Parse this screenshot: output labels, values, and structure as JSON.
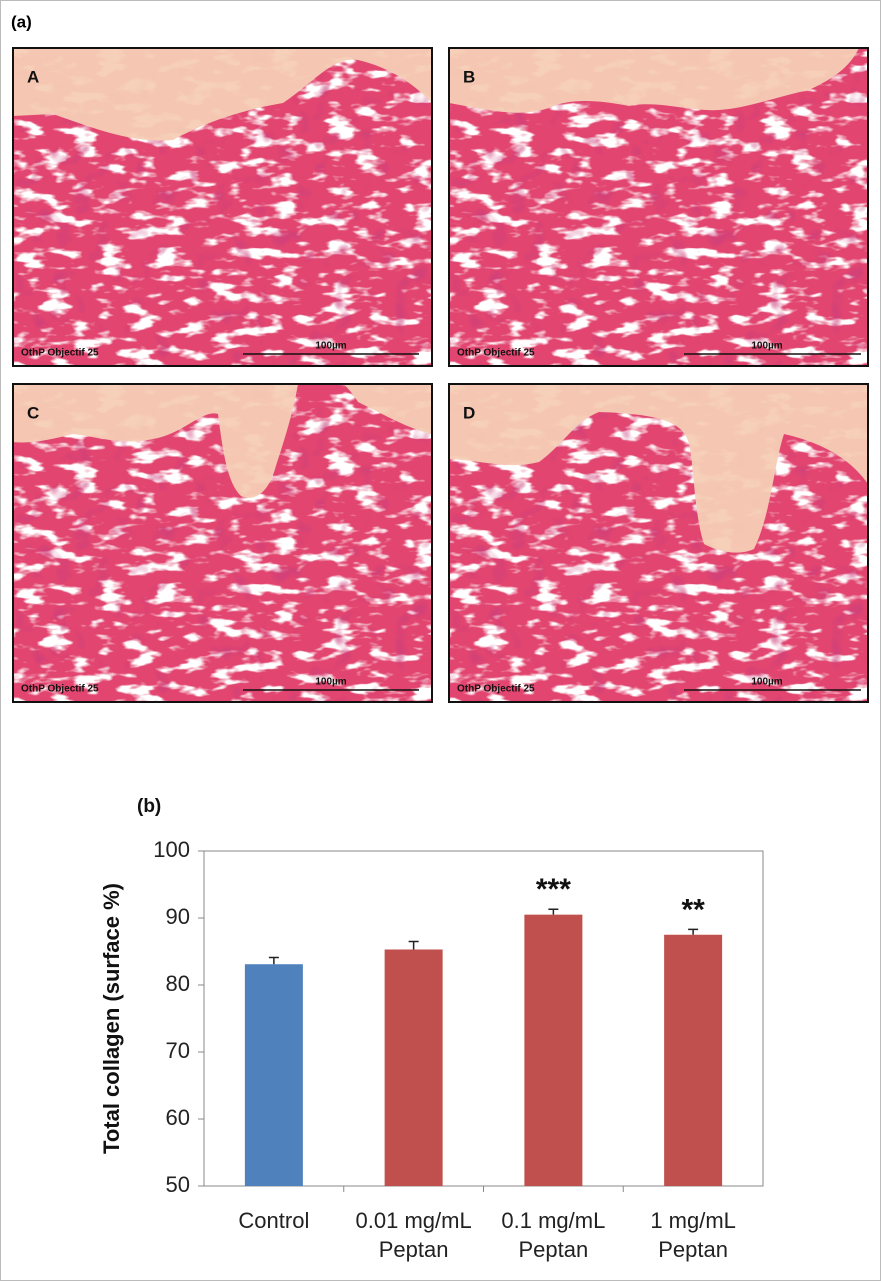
{
  "panel_a": {
    "label": "(a)",
    "panels": [
      {
        "letter": "A",
        "caption": "OthP Objectif 25",
        "scale": "100µm"
      },
      {
        "letter": "B",
        "caption": "OthP Objectif 25",
        "scale": "100µm"
      },
      {
        "letter": "C",
        "caption": "OthP Objectif 25",
        "scale": "100µm"
      },
      {
        "letter": "D",
        "caption": "OthP Objectif 25",
        "scale": "100µm"
      }
    ]
  },
  "chart_data": {
    "type": "bar",
    "label": "(b)",
    "y_label": "Total collagen (surface %)",
    "categories": [
      "Control",
      "0.01 mg/mL\nPeptan",
      "0.1 mg/mL\nPeptan",
      "1 mg/mL\nPeptan"
    ],
    "values": [
      83.1,
      85.3,
      90.5,
      87.5
    ],
    "errors": [
      1.0,
      1.2,
      0.8,
      0.8
    ],
    "colors": [
      "#4f81bd",
      "#c0504d",
      "#c0504d",
      "#c0504d"
    ],
    "significance": [
      null,
      null,
      "***",
      "**"
    ],
    "ylim": [
      50,
      100
    ],
    "yticks": [
      50,
      60,
      70,
      80,
      90,
      100
    ],
    "grid": false
  }
}
